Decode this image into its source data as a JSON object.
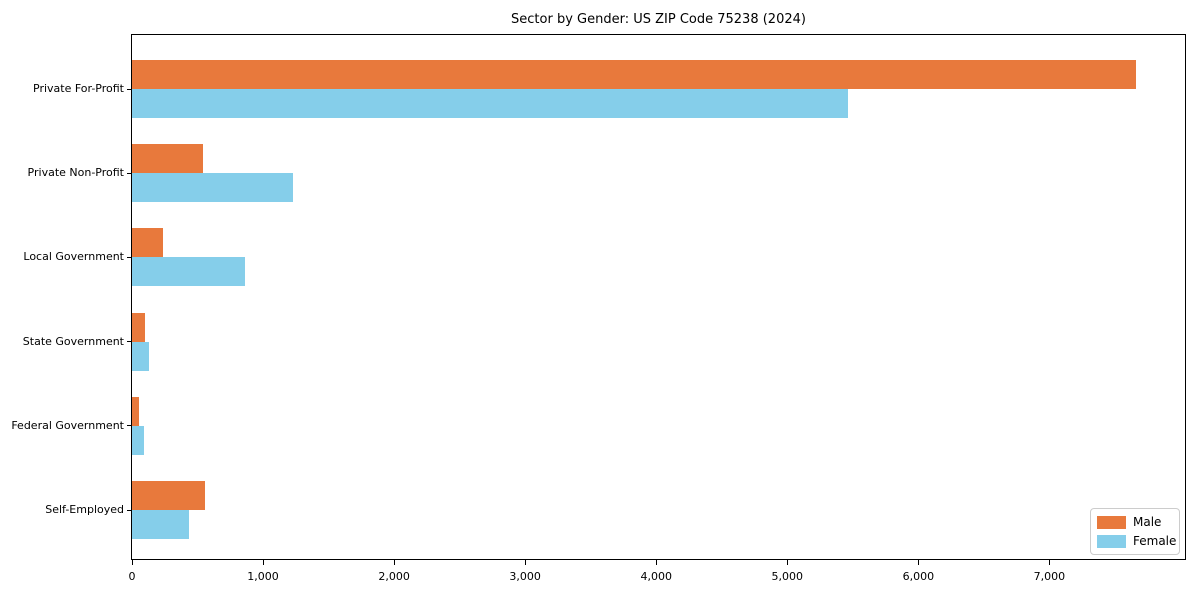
{
  "chart_data": {
    "type": "bar",
    "orientation": "horizontal",
    "title": "Sector by Gender: US ZIP Code 75238 (2024)",
    "categories": [
      "Private For-Profit",
      "Private Non-Profit",
      "Local Government",
      "State Government",
      "Federal Government",
      "Self-Employed"
    ],
    "series": [
      {
        "name": "Male",
        "color": "#E8793C",
        "values": [
          7660,
          540,
          240,
          100,
          55,
          560
        ]
      },
      {
        "name": "Female",
        "color": "#85CEEA",
        "values": [
          5460,
          1230,
          860,
          130,
          90,
          435
        ]
      }
    ],
    "xlabel": "",
    "ylabel": "",
    "xlim": [
      0,
      8050
    ],
    "xticks": [
      0,
      1000,
      2000,
      3000,
      4000,
      5000,
      6000,
      7000
    ],
    "xtick_labels": [
      "0",
      "1,000",
      "2,000",
      "3,000",
      "4,000",
      "5,000",
      "6,000",
      "7,000"
    ],
    "grid": false,
    "legend": {
      "position": "lower right",
      "entries": [
        "Male",
        "Female"
      ]
    },
    "background_color": "#ffffff",
    "axis_color": "#000000"
  }
}
